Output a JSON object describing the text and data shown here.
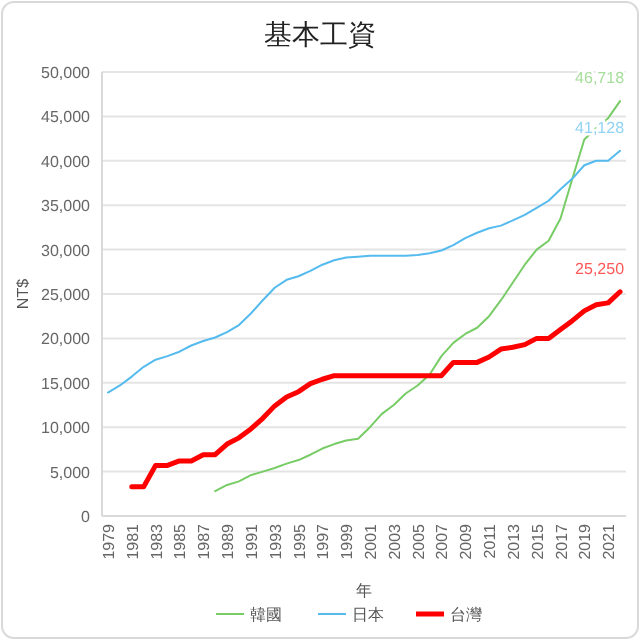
{
  "chart_data": {
    "type": "line",
    "title": "基本工資",
    "xlabel": "年",
    "ylabel": "NT$",
    "categories": [
      "1979",
      null,
      "1981",
      null,
      "1983",
      null,
      "1985",
      null,
      "1987",
      null,
      "1989",
      null,
      "1991",
      null,
      "1993",
      null,
      "1995",
      null,
      "1997",
      null,
      "1999",
      null,
      "2001",
      null,
      "2003",
      null,
      "2005",
      null,
      "2007",
      null,
      "2009",
      null,
      "2011",
      null,
      "2013",
      null,
      "2015",
      null,
      "2017",
      null,
      "2019",
      null,
      "2021",
      null
    ],
    "ylim": [
      0,
      50000
    ],
    "yticks": [
      {
        "value": 0,
        "label": "0"
      },
      {
        "value": 5000,
        "label": "5,000"
      },
      {
        "value": 10000,
        "label": "10,000"
      },
      {
        "value": 15000,
        "label": "15,000"
      },
      {
        "value": 20000,
        "label": "20,000"
      },
      {
        "value": 25000,
        "label": "25,000"
      },
      {
        "value": 30000,
        "label": "30,000"
      },
      {
        "value": 35000,
        "label": "35,000"
      },
      {
        "value": 40000,
        "label": "40,000"
      },
      {
        "value": 45000,
        "label": "45,000"
      },
      {
        "value": 50000,
        "label": "50,000"
      }
    ],
    "grid": "y",
    "legend": "bottom",
    "marker": "none",
    "line_style": "solid",
    "series": [
      {
        "name": "韓國",
        "color": "#77cc66",
        "values": [
          null,
          null,
          null,
          null,
          null,
          null,
          null,
          null,
          null,
          2800,
          3500,
          3900,
          4600,
          5000,
          5400,
          5900,
          6300,
          6900,
          7600,
          8100,
          8500,
          8700,
          10000,
          11500,
          12500,
          13800,
          14700,
          15900,
          18000,
          19500,
          20500,
          21200,
          22500,
          24300,
          26300,
          28300,
          30000,
          31000,
          33500,
          38000,
          42400,
          43700,
          44800,
          46718
        ],
        "value_labels": [
          null,
          null,
          null,
          null,
          null,
          null,
          null,
          null,
          null,
          null,
          null,
          null,
          null,
          null,
          null,
          null,
          null,
          null,
          null,
          null,
          null,
          null,
          null,
          null,
          null,
          null,
          null,
          null,
          null,
          null,
          null,
          null,
          null,
          null,
          null,
          null,
          null,
          null,
          null,
          null,
          null,
          null,
          null,
          "46,718"
        ]
      },
      {
        "name": "日本",
        "color": "#55bbee",
        "values": [
          13900,
          14700,
          15700,
          16800,
          17600,
          18000,
          18500,
          19200,
          19700,
          20100,
          20700,
          21500,
          22800,
          24300,
          25700,
          26600,
          27000,
          27600,
          28300,
          28800,
          29100,
          29200,
          29300,
          29300,
          29300,
          29300,
          29400,
          29600,
          29900,
          30500,
          31300,
          31900,
          32400,
          32700,
          33300,
          33900,
          34700,
          35500,
          36800,
          38000,
          39500,
          40000,
          40000,
          41128
        ],
        "value_labels": [
          null,
          null,
          null,
          null,
          null,
          null,
          null,
          null,
          null,
          null,
          null,
          null,
          null,
          null,
          null,
          null,
          null,
          null,
          null,
          null,
          null,
          null,
          null,
          null,
          null,
          null,
          null,
          null,
          null,
          null,
          null,
          null,
          null,
          null,
          null,
          null,
          null,
          null,
          null,
          null,
          null,
          null,
          null,
          "41,128"
        ]
      },
      {
        "name": "台灣",
        "color": "#ff0000",
        "values": [
          null,
          null,
          3300,
          3300,
          5700,
          5700,
          6200,
          6200,
          6900,
          6900,
          8100,
          8800,
          9800,
          11000,
          12400,
          13400,
          14000,
          14900,
          15400,
          15800,
          15800,
          15800,
          15800,
          15800,
          15800,
          15800,
          15800,
          15800,
          15800,
          17300,
          17300,
          17300,
          17900,
          18800,
          19000,
          19300,
          20000,
          20000,
          21000,
          22000,
          23100,
          23800,
          24000,
          25250
        ],
        "value_labels": [
          null,
          null,
          null,
          null,
          null,
          null,
          null,
          null,
          null,
          null,
          null,
          null,
          null,
          null,
          null,
          null,
          null,
          null,
          null,
          null,
          null,
          null,
          null,
          null,
          null,
          null,
          null,
          null,
          null,
          null,
          null,
          null,
          null,
          null,
          null,
          null,
          null,
          null,
          null,
          null,
          null,
          null,
          null,
          "25,250"
        ]
      }
    ]
  }
}
